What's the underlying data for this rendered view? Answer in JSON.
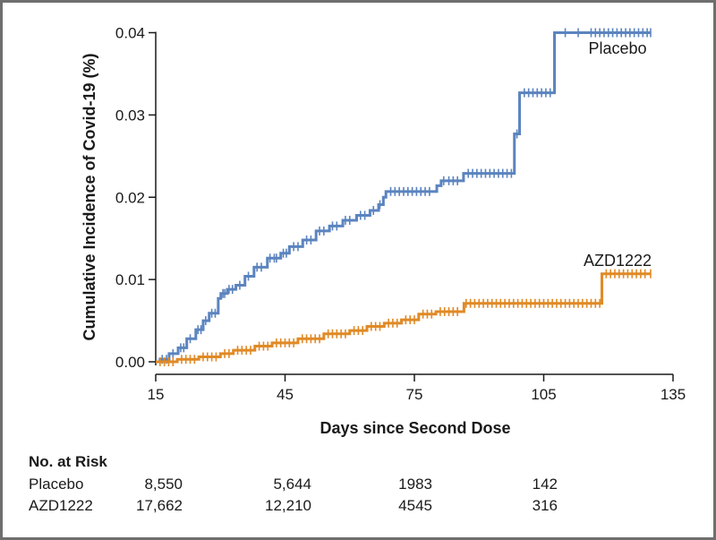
{
  "chart_data": {
    "type": "line",
    "subtype": "kaplan-meier-cumulative-incidence",
    "xlabel": "Days since Second Dose",
    "ylabel": "Cumulative Incidence of Covid-19 (%)",
    "xlim": [
      15,
      135
    ],
    "ylim": [
      0,
      0.04
    ],
    "xticks": [
      "15",
      "45",
      "75",
      "105",
      "135"
    ],
    "yticks": [
      "0.00",
      "0.01",
      "0.02",
      "0.03",
      "0.04"
    ],
    "grid": false,
    "legend": "inline-labels",
    "series": [
      {
        "name": "Placebo",
        "color": "#5b84bf",
        "steps": [
          [
            15,
            0
          ],
          [
            16,
            0.0003
          ],
          [
            18.1,
            0.001
          ],
          [
            20.2,
            0.0017
          ],
          [
            22.2,
            0.0028
          ],
          [
            24.3,
            0.0039
          ],
          [
            26,
            0.005
          ],
          [
            27.4,
            0.0059
          ],
          [
            29.5,
            0.0077
          ],
          [
            30.1,
            0.0083
          ],
          [
            31.6,
            0.0088
          ],
          [
            33.6,
            0.0093
          ],
          [
            35.7,
            0.0104
          ],
          [
            37.8,
            0.0115
          ],
          [
            40.9,
            0.0126
          ],
          [
            44,
            0.0132
          ],
          [
            46,
            0.014
          ],
          [
            49.1,
            0.0148
          ],
          [
            52.2,
            0.0159
          ],
          [
            55.3,
            0.0165
          ],
          [
            58.4,
            0.0172
          ],
          [
            61.6,
            0.0178
          ],
          [
            64.7,
            0.0184
          ],
          [
            66.7,
            0.0191
          ],
          [
            67.8,
            0.02
          ],
          [
            68.4,
            0.0207
          ],
          [
            80.2,
            0.0214
          ],
          [
            81.2,
            0.022
          ],
          [
            86.4,
            0.0229
          ],
          [
            98.2,
            0.0277
          ],
          [
            99.4,
            0.0327
          ],
          [
            107.5,
            0.04
          ],
          [
            129.8,
            0.04
          ]
        ],
        "censor_times": [
          16.5,
          17.5,
          19,
          20.8,
          21.5,
          23,
          24.8,
          25.5,
          26.6,
          28,
          28.8,
          30.6,
          31,
          32,
          32.8,
          34.5,
          36.5,
          38.5,
          39.5,
          41.5,
          42.5,
          43,
          44.6,
          45.3,
          47,
          48,
          50,
          51,
          53,
          54,
          56,
          57,
          59,
          60,
          62.5,
          63.5,
          65.5,
          67,
          69.5,
          70.5,
          71.5,
          72.5,
          73.5,
          74.5,
          75.5,
          76.5,
          77.5,
          78.5,
          81.8,
          83,
          84,
          85,
          87.5,
          88.5,
          89.5,
          90.5,
          91.5,
          92.5,
          93.5,
          94.5,
          95.5,
          96.5,
          97.5,
          98.8,
          100.5,
          101.5,
          102.5,
          103.5,
          104.5,
          105.5,
          106.5,
          110,
          113,
          116,
          117,
          118,
          119,
          120,
          121,
          122,
          123,
          124,
          125,
          126,
          127,
          128,
          129,
          129.8
        ],
        "end_label": "Placebo"
      },
      {
        "name": "AZD1222",
        "color": "#e08a26",
        "steps": [
          [
            15,
            0
          ],
          [
            20,
            0.0003
          ],
          [
            25,
            0.0006
          ],
          [
            30,
            0.001
          ],
          [
            33,
            0.0014
          ],
          [
            38,
            0.0019
          ],
          [
            42,
            0.0023
          ],
          [
            48,
            0.0028
          ],
          [
            54,
            0.0034
          ],
          [
            60,
            0.0038
          ],
          [
            64,
            0.0043
          ],
          [
            68,
            0.0047
          ],
          [
            72,
            0.0051
          ],
          [
            76,
            0.0058
          ],
          [
            80,
            0.0061
          ],
          [
            86.5,
            0.0071
          ],
          [
            118.5,
            0.0107
          ],
          [
            129.8,
            0.0107
          ]
        ],
        "censor_times": [
          16,
          17,
          18,
          19,
          21,
          22,
          23,
          24,
          26,
          27,
          28,
          29,
          31,
          32,
          34,
          35,
          36,
          37,
          39,
          40,
          41,
          43,
          44,
          45,
          46,
          47,
          49,
          50,
          51,
          52,
          53,
          55,
          56,
          57,
          58,
          59,
          61,
          62,
          63,
          65,
          66,
          67,
          69,
          70,
          71,
          73,
          74,
          75,
          77,
          78,
          79,
          81,
          82,
          83,
          84,
          85,
          87,
          88,
          89,
          90,
          91,
          92,
          93,
          94,
          95,
          96,
          97,
          98,
          99,
          100,
          101,
          102,
          103,
          104,
          105,
          106,
          107,
          108,
          109,
          110,
          111,
          112,
          113,
          114,
          115,
          116,
          117,
          118,
          119.5,
          120.5,
          121.5,
          122.5,
          123.5,
          124.5,
          125.5,
          126.5,
          127.5,
          128.5,
          129.8
        ],
        "end_label": "AZD1222"
      }
    ]
  },
  "risk_table": {
    "title": "No. at Risk",
    "rows": [
      {
        "label": "Placebo",
        "values": [
          "8,550",
          "5,644",
          "1983",
          "142"
        ]
      },
      {
        "label": "AZD1222",
        "values": [
          "17,662",
          "12,210",
          "4545",
          "316"
        ]
      }
    ]
  }
}
